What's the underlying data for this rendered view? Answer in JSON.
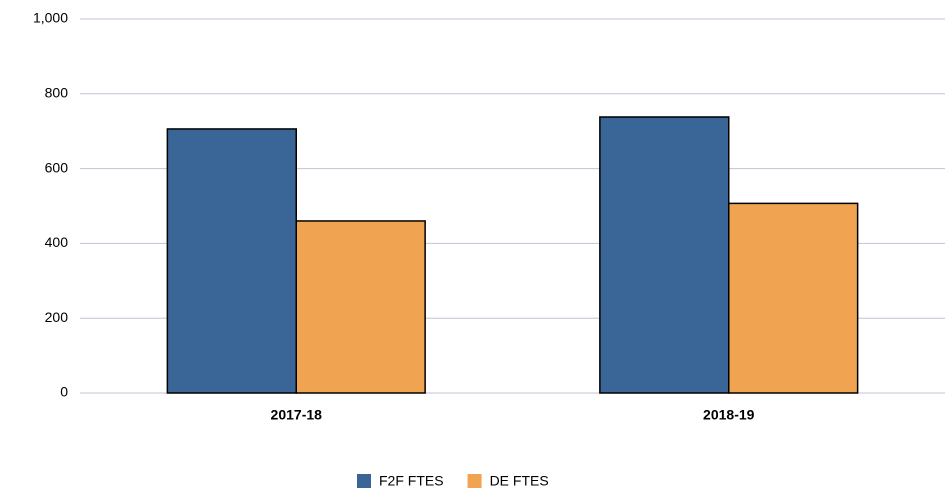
{
  "chart_data": {
    "type": "bar",
    "categories": [
      "2017-18",
      "2018-19"
    ],
    "series": [
      {
        "name": "F2F FTES",
        "color": "#3a6697",
        "values": [
          706,
          738
        ]
      },
      {
        "name": "DE FTES",
        "color": "#f0a452",
        "values": [
          460,
          507
        ]
      }
    ],
    "ylim": [
      0,
      1000
    ],
    "yticks": [
      0,
      200,
      400,
      600,
      800,
      {
        "value": 1000,
        "label": "1,000"
      }
    ],
    "grid": true,
    "legend": "bottom"
  }
}
